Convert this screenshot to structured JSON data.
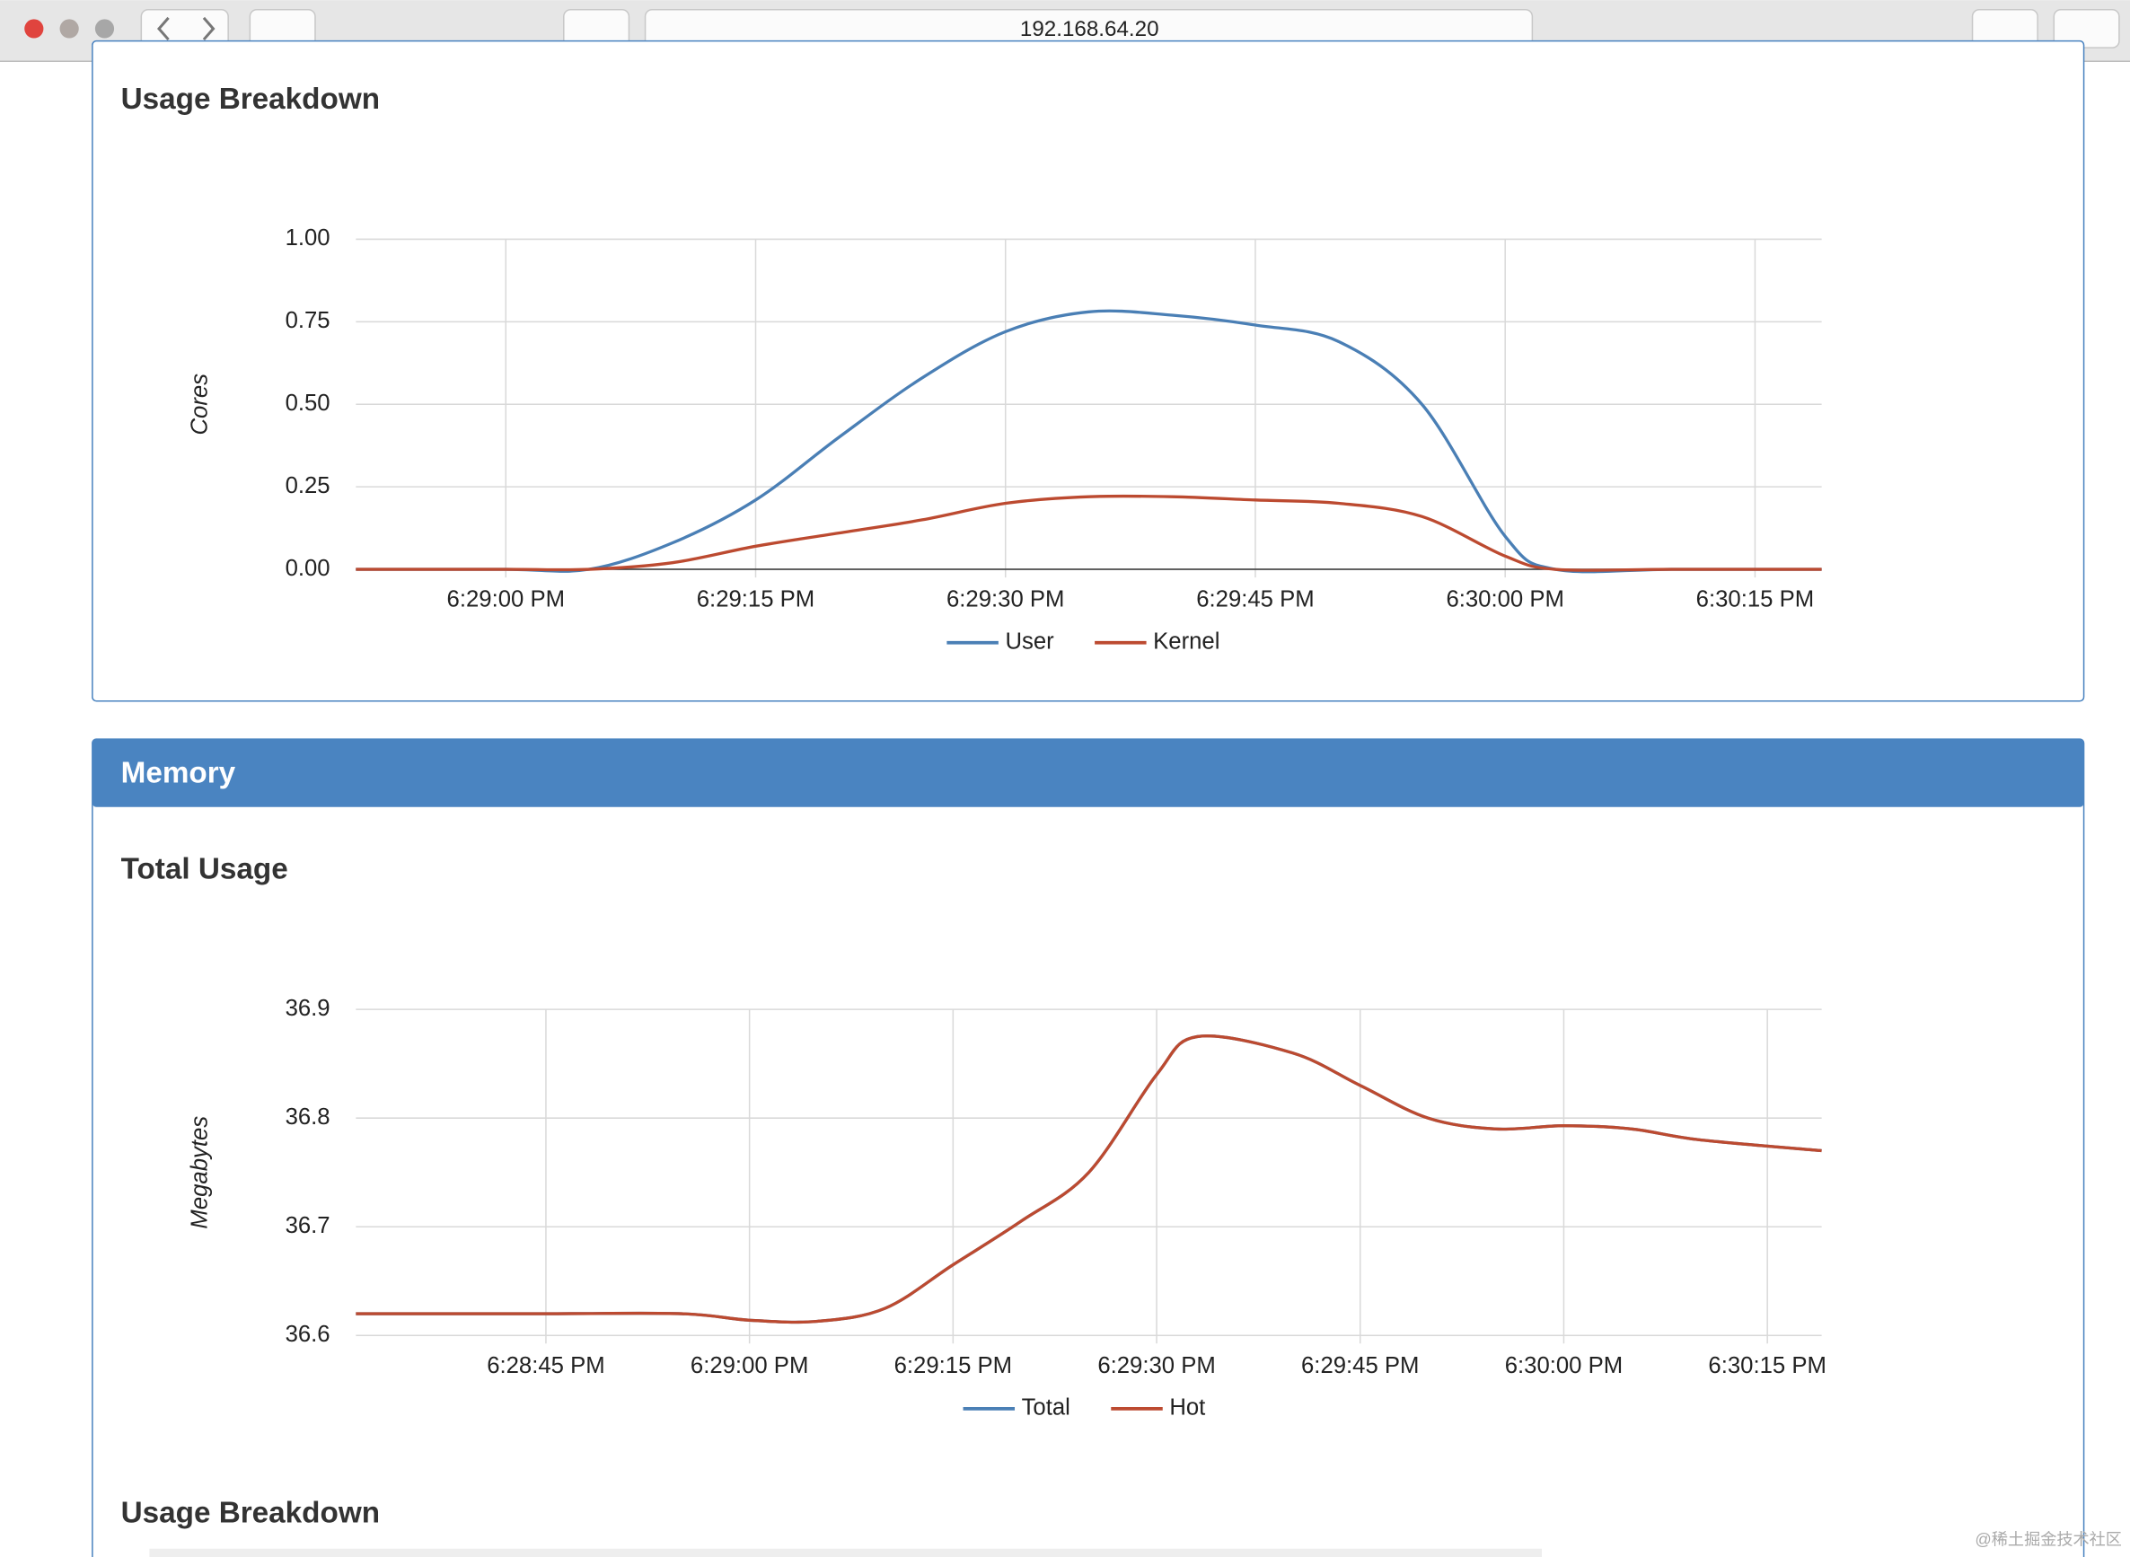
{
  "browser": {
    "url": "192.168.64.20"
  },
  "sections": [
    {
      "title": "Usage Breakdown"
    },
    {
      "header": "Memory",
      "title": "Total Usage"
    },
    {
      "title": "Usage Breakdown"
    }
  ],
  "watermark": "@稀土掘金技术社区",
  "chart_data": [
    {
      "type": "line",
      "ylabel": "Cores",
      "x": [
        "6:28:51 PM",
        "6:29:00 PM",
        "6:29:05 PM",
        "6:29:10 PM",
        "6:29:15 PM",
        "6:29:20 PM",
        "6:29:25 PM",
        "6:29:30 PM",
        "6:29:35 PM",
        "6:29:40 PM",
        "6:29:45 PM",
        "6:29:50 PM",
        "6:29:55 PM",
        "6:30:00 PM",
        "6:30:03 PM",
        "6:30:10 PM",
        "6:30:19 PM"
      ],
      "series": [
        {
          "name": "User",
          "color": "#4a7fb5",
          "values": [
            0,
            0,
            0,
            0.08,
            0.21,
            0.4,
            0.58,
            0.72,
            0.78,
            0.77,
            0.74,
            0.69,
            0.5,
            0.1,
            0,
            0,
            0
          ]
        },
        {
          "name": "Kernel",
          "color": "#bc4a30",
          "values": [
            0,
            0,
            0,
            0.02,
            0.07,
            0.11,
            0.15,
            0.2,
            0.22,
            0.22,
            0.21,
            0.2,
            0.16,
            0.04,
            0,
            0,
            0
          ]
        }
      ],
      "xlim": [
        "6:28:51 PM",
        "6:30:19 PM"
      ],
      "xticks": [
        "6:29:00 PM",
        "6:29:15 PM",
        "6:29:30 PM",
        "6:29:45 PM",
        "6:30:00 PM",
        "6:30:15 PM"
      ],
      "ylim": [
        0,
        1
      ],
      "yticks": [
        {
          "value": 0,
          "label": "0.00"
        },
        {
          "value": 0.25,
          "label": "0.25"
        },
        {
          "value": 0.5,
          "label": "0.50"
        },
        {
          "value": 0.75,
          "label": "0.75"
        },
        {
          "value": 1,
          "label": "1.00"
        }
      ],
      "grid": true,
      "legend": "bottom"
    },
    {
      "type": "line",
      "ylabel": "Megabytes",
      "x": [
        "6:28:31 PM",
        "6:28:45 PM",
        "6:28:55 PM",
        "6:29:00 PM",
        "6:29:05 PM",
        "6:29:10 PM",
        "6:29:15 PM",
        "6:29:20 PM",
        "6:29:25 PM",
        "6:29:30 PM",
        "6:29:33 PM",
        "6:29:40 PM",
        "6:29:45 PM",
        "6:29:50 PM",
        "6:29:55 PM",
        "6:30:00 PM",
        "6:30:05 PM",
        "6:30:10 PM",
        "6:30:19 PM"
      ],
      "series": [
        {
          "name": "Total",
          "color": "#4a7fb5",
          "values": [
            36.62,
            36.62,
            36.62,
            36.614,
            36.613,
            36.625,
            36.665,
            36.705,
            36.75,
            36.84,
            36.875,
            36.86,
            36.83,
            36.8,
            36.79,
            36.793,
            36.79,
            36.78,
            36.77
          ]
        },
        {
          "name": "Hot",
          "color": "#bc4a30",
          "values": [
            36.62,
            36.62,
            36.62,
            36.614,
            36.613,
            36.625,
            36.665,
            36.705,
            36.75,
            36.84,
            36.875,
            36.86,
            36.83,
            36.8,
            36.79,
            36.793,
            36.79,
            36.78,
            36.77
          ]
        }
      ],
      "xlim": [
        "6:28:31 PM",
        "6:30:19 PM"
      ],
      "xticks": [
        "6:28:45 PM",
        "6:29:00 PM",
        "6:29:15 PM",
        "6:29:30 PM",
        "6:29:45 PM",
        "6:30:00 PM",
        "6:30:15 PM"
      ],
      "ylim": [
        36.6,
        36.9
      ],
      "yticks": [
        36.6,
        36.7,
        36.8,
        36.9
      ],
      "grid": true,
      "legend": "bottom"
    }
  ]
}
